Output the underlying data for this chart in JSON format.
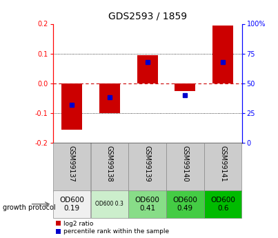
{
  "title": "GDS2593 / 1859",
  "samples": [
    "GSM99137",
    "GSM99138",
    "GSM99139",
    "GSM99140",
    "GSM99141"
  ],
  "log2_ratios": [
    -0.155,
    -0.1,
    0.095,
    -0.025,
    0.195
  ],
  "percentile_ranks": [
    32,
    38,
    68,
    40,
    68
  ],
  "ylim": [
    -0.2,
    0.2
  ],
  "y2lim": [
    0,
    100
  ],
  "yticks": [
    -0.2,
    -0.1,
    0.0,
    0.1,
    0.2
  ],
  "y2ticks": [
    0,
    25,
    50,
    75,
    100
  ],
  "bar_color": "#cc0000",
  "pct_color": "#0000cc",
  "zero_line_color": "#cc0000",
  "dotted_color": "#000000",
  "growth_labels": [
    "OD600\n0.19",
    "OD600 0.3",
    "OD600\n0.41",
    "OD600\n0.49",
    "OD600\n0.6"
  ],
  "growth_bg": [
    "#f0f0f0",
    "#cceecc",
    "#88dd88",
    "#44cc44",
    "#00bb00"
  ],
  "growth_fontsize": [
    7.5,
    5.5,
    7.5,
    7.5,
    7.5
  ],
  "bar_width": 0.55,
  "fig_width": 4.03,
  "fig_height": 3.45,
  "dpi": 100
}
